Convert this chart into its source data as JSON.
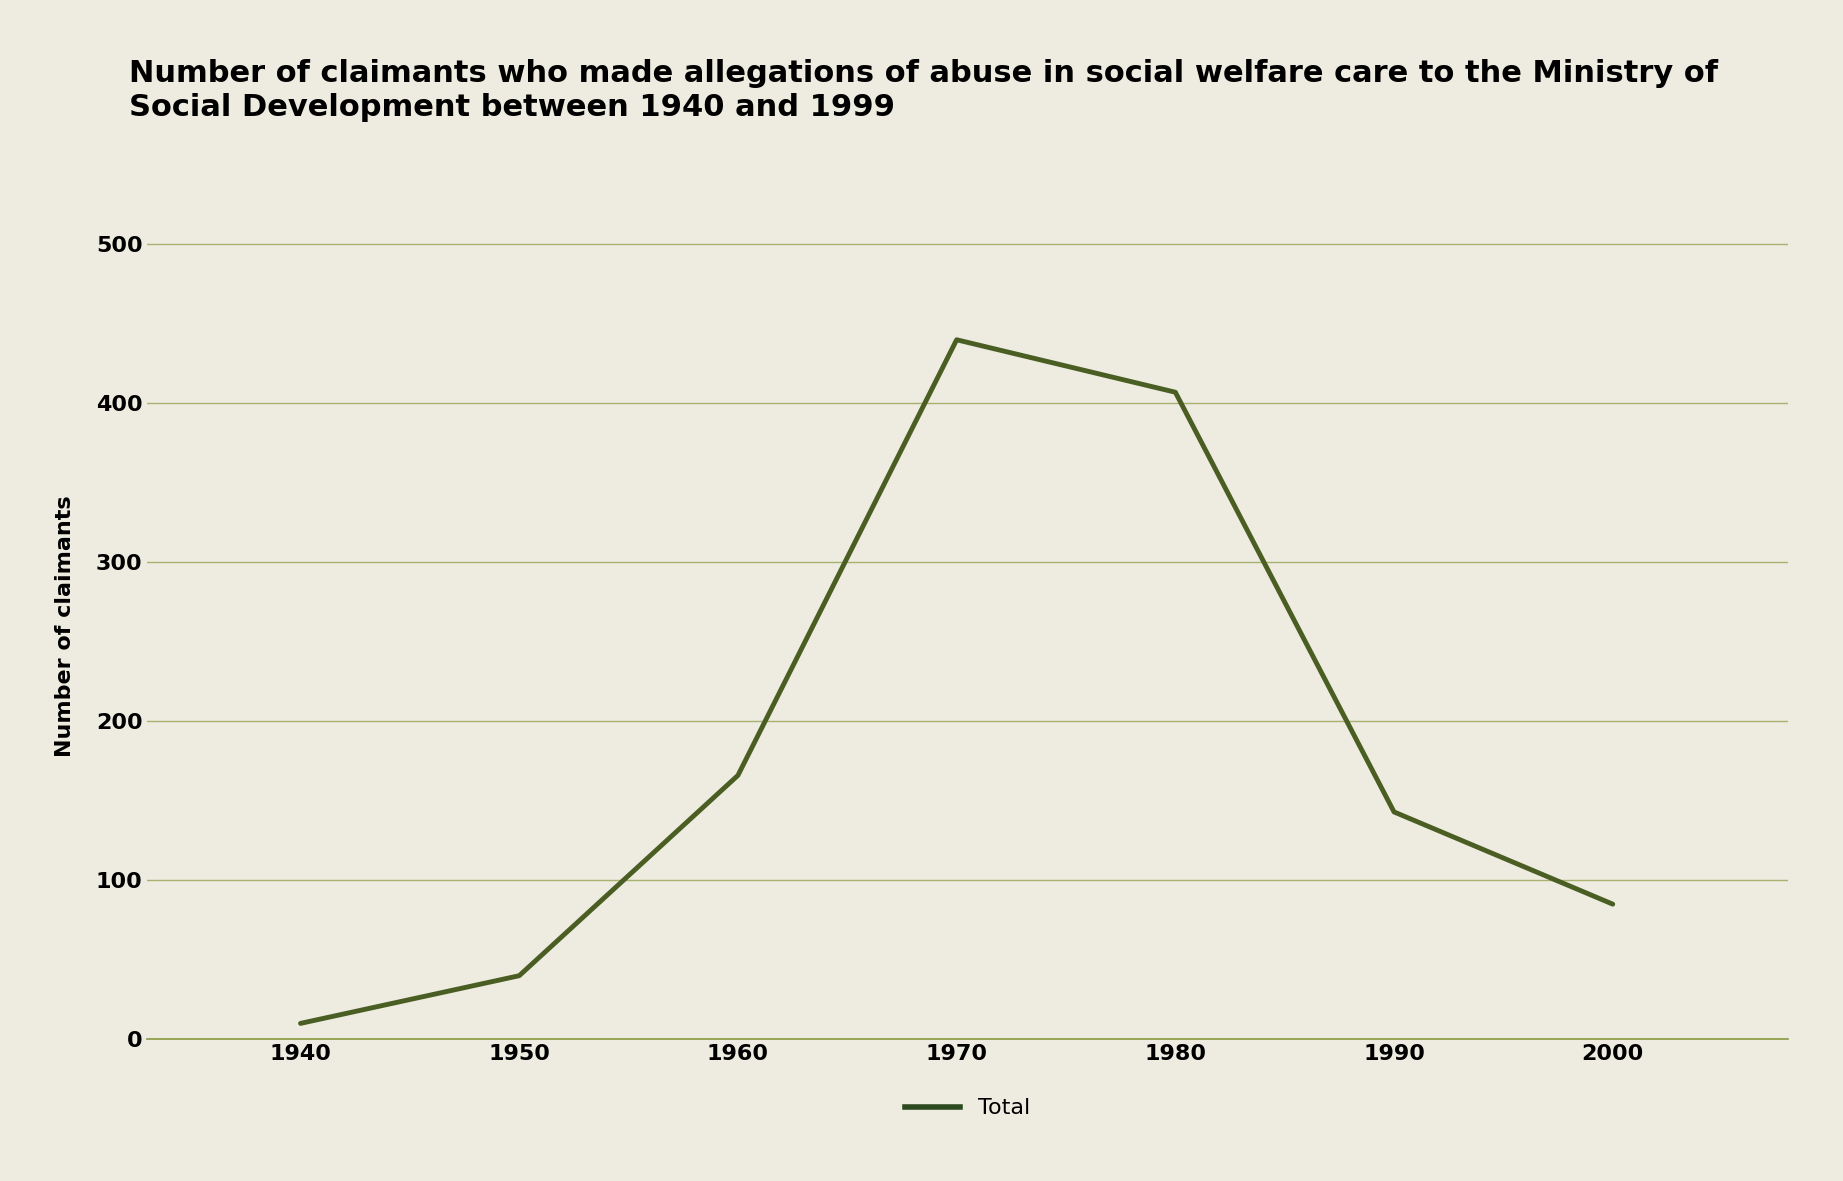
{
  "x": [
    1940,
    1950,
    1960,
    1970,
    1980,
    1990,
    2000
  ],
  "y": [
    10,
    40,
    166,
    440,
    407,
    143,
    85
  ],
  "line_color": "#4a5e23",
  "line_width": 3.5,
  "title_line1": "Number of claimants who made allegations of abuse in social welfare care to the Ministry of",
  "title_line2": "Social Development between 1940 and 1999",
  "ylabel": "Number of claimants",
  "xlabel": "",
  "ylim": [
    0,
    520
  ],
  "yticks": [
    0,
    100,
    200,
    300,
    400,
    500
  ],
  "xticks": [
    1940,
    1950,
    1960,
    1970,
    1980,
    1990,
    2000
  ],
  "xlim": [
    1933,
    2008
  ],
  "background_color": "#eeece0",
  "grid_color": "#8a9a40",
  "title_fontsize": 22,
  "axis_label_fontsize": 16,
  "tick_fontsize": 16,
  "legend_label": "Total",
  "legend_color": "#2d4a1e"
}
